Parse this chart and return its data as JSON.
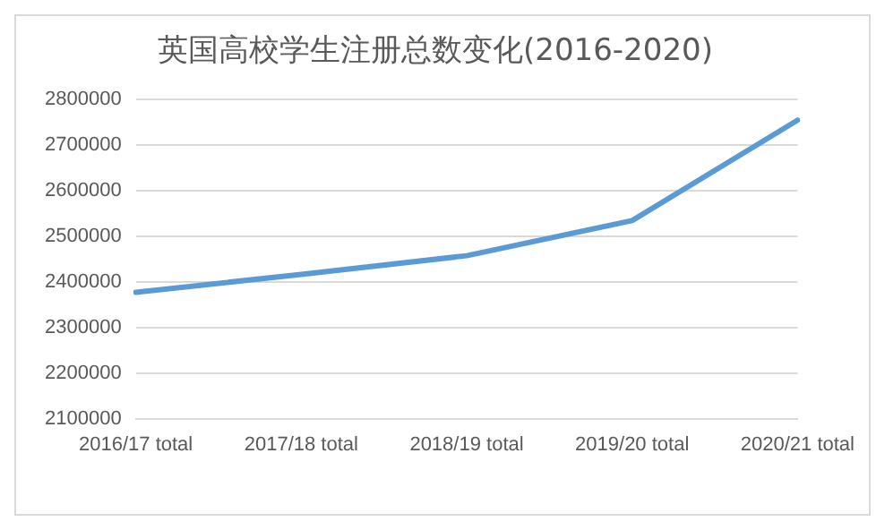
{
  "chart_data": {
    "type": "line",
    "title": "英国高校学生注册总数变化(2016-2020)",
    "categories": [
      "2016/17 total",
      "2017/18 total",
      "2018/19 total",
      "2019/20 total",
      "2020/21 total"
    ],
    "series": [
      {
        "color": "#5b9bd5",
        "values": [
          2377000,
          2416000,
          2457000,
          2534000,
          2754000
        ]
      }
    ],
    "ylim": [
      2100000,
      2800000
    ],
    "yticks": [
      2100000,
      2200000,
      2300000,
      2400000,
      2500000,
      2600000,
      2700000,
      2800000
    ],
    "grid": "y",
    "legend": false,
    "marker": "none",
    "line_style": "solid"
  }
}
